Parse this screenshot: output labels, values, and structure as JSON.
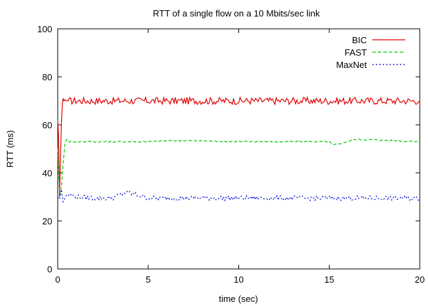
{
  "chart_data": {
    "type": "line",
    "title": "RTT of a single flow on a 10 Mbits/sec link",
    "xlabel": "time (sec)",
    "ylabel": "RTT (ms)",
    "xlim": [
      0,
      20
    ],
    "ylim": [
      0,
      100
    ],
    "xticks": [
      0,
      5,
      10,
      15,
      20
    ],
    "yticks": [
      0,
      20,
      40,
      60,
      80,
      100
    ],
    "grid": false,
    "legend_position": "top-right",
    "series": [
      {
        "name": "BIC",
        "color": "#e00000",
        "dash": "solid",
        "x": [
          0,
          0.05,
          0.1,
          0.15,
          0.2,
          0.25,
          0.3,
          0.35,
          0.4,
          0.5,
          1,
          2,
          3,
          4,
          5,
          6,
          7,
          8,
          9,
          10,
          11,
          12,
          13,
          14,
          15,
          16,
          17,
          18,
          19,
          20
        ],
        "y": [
          62,
          55,
          30,
          45,
          60,
          68,
          71,
          70,
          70.5,
          70,
          70,
          70,
          70,
          70,
          70,
          70,
          70,
          70,
          70,
          70,
          70,
          70,
          70,
          70,
          70,
          70,
          70,
          70,
          70,
          70
        ],
        "jitter": 1.5
      },
      {
        "name": "FAST",
        "color": "#00c800",
        "dash": "5,3",
        "x": [
          0,
          0.05,
          0.1,
          0.15,
          0.2,
          0.3,
          0.4,
          0.5,
          0.6,
          0.8,
          1,
          2,
          5,
          6.7,
          10,
          15,
          15.2,
          16.5,
          18.5,
          20
        ],
        "y": [
          50,
          40,
          33,
          31,
          34,
          44,
          52,
          54,
          53,
          53,
          53,
          53,
          53,
          53.5,
          53,
          53,
          51.5,
          54,
          53.5,
          53
        ],
        "jitter": 0.3
      },
      {
        "name": "MaxNet",
        "color": "#0000e0",
        "dash": "2,3",
        "x": [
          0,
          0.1,
          0.2,
          0.3,
          0.5,
          1,
          2,
          3,
          3.8,
          5,
          10,
          15,
          20
        ],
        "y": [
          30,
          29,
          33,
          28,
          31,
          30,
          29.5,
          29.5,
          32,
          29.5,
          29.5,
          29.5,
          29.5
        ],
        "jitter": 1.0
      }
    ]
  }
}
